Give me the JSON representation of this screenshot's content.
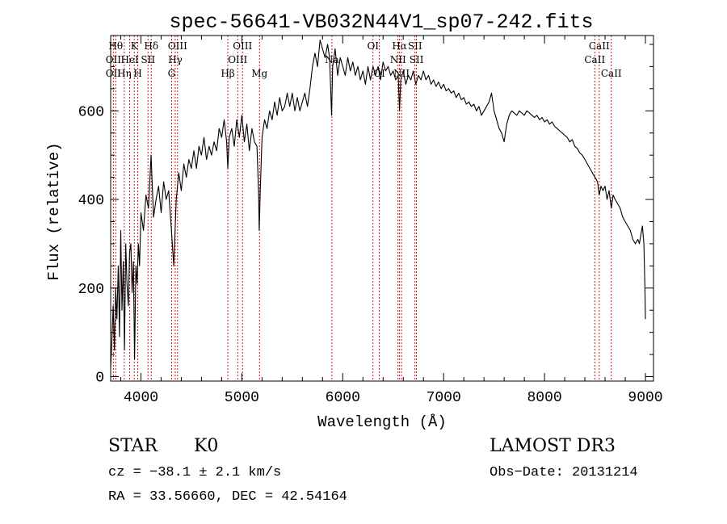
{
  "chart_data": {
    "type": "line",
    "title": "spec-56641-VB032N44V1_sp07-242.fits",
    "xlabel": "Wavelength (Å)",
    "ylabel": "Flux (relative)",
    "xlim": [
      3700,
      9080
    ],
    "ylim": [
      -10,
      770
    ],
    "x_ticks": [
      4000,
      5000,
      6000,
      7000,
      8000,
      9000
    ],
    "x_tick_labels": [
      "4000",
      "5000",
      "6000",
      "7000",
      "8000",
      "9000"
    ],
    "y_ticks": [
      0,
      200,
      400,
      600
    ],
    "y_tick_labels": [
      "0",
      "200",
      "400",
      "600"
    ],
    "grid": false,
    "series": [
      {
        "color": "#000000",
        "points": [
          [
            3700,
            20
          ],
          [
            3712,
            80
          ],
          [
            3725,
            160
          ],
          [
            3738,
            60
          ],
          [
            3750,
            200
          ],
          [
            3762,
            130
          ],
          [
            3775,
            250
          ],
          [
            3787,
            90
          ],
          [
            3800,
            330
          ],
          [
            3812,
            150
          ],
          [
            3825,
            260
          ],
          [
            3837,
            60
          ],
          [
            3850,
            300
          ],
          [
            3862,
            210
          ],
          [
            3875,
            160
          ],
          [
            3887,
            280
          ],
          [
            3900,
            300
          ],
          [
            3912,
            190
          ],
          [
            3925,
            260
          ],
          [
            3937,
            40
          ],
          [
            3950,
            250
          ],
          [
            3962,
            210
          ],
          [
            3975,
            300
          ],
          [
            3987,
            250
          ],
          [
            4000,
            370
          ],
          [
            4025,
            330
          ],
          [
            4050,
            410
          ],
          [
            4075,
            380
          ],
          [
            4100,
            500
          ],
          [
            4125,
            360
          ],
          [
            4150,
            400
          ],
          [
            4175,
            430
          ],
          [
            4200,
            370
          ],
          [
            4225,
            440
          ],
          [
            4250,
            400
          ],
          [
            4275,
            420
          ],
          [
            4300,
            340
          ],
          [
            4325,
            250
          ],
          [
            4350,
            400
          ],
          [
            4375,
            460
          ],
          [
            4400,
            420
          ],
          [
            4425,
            480
          ],
          [
            4450,
            450
          ],
          [
            4475,
            490
          ],
          [
            4500,
            470
          ],
          [
            4525,
            510
          ],
          [
            4550,
            470
          ],
          [
            4575,
            520
          ],
          [
            4600,
            500
          ],
          [
            4625,
            540
          ],
          [
            4650,
            490
          ],
          [
            4675,
            520
          ],
          [
            4700,
            500
          ],
          [
            4725,
            530
          ],
          [
            4750,
            510
          ],
          [
            4775,
            560
          ],
          [
            4800,
            540
          ],
          [
            4825,
            580
          ],
          [
            4850,
            530
          ],
          [
            4861,
            470
          ],
          [
            4875,
            540
          ],
          [
            4900,
            560
          ],
          [
            4925,
            520
          ],
          [
            4950,
            580
          ],
          [
            4975,
            540
          ],
          [
            5000,
            590
          ],
          [
            5025,
            530
          ],
          [
            5050,
            570
          ],
          [
            5075,
            510
          ],
          [
            5100,
            560
          ],
          [
            5125,
            530
          ],
          [
            5150,
            520
          ],
          [
            5167,
            410
          ],
          [
            5172,
            330
          ],
          [
            5183,
            420
          ],
          [
            5200,
            540
          ],
          [
            5225,
            580
          ],
          [
            5250,
            560
          ],
          [
            5275,
            600
          ],
          [
            5300,
            580
          ],
          [
            5325,
            620
          ],
          [
            5350,
            590
          ],
          [
            5375,
            630
          ],
          [
            5400,
            600
          ],
          [
            5425,
            610
          ],
          [
            5450,
            640
          ],
          [
            5475,
            610
          ],
          [
            5500,
            640
          ],
          [
            5525,
            600
          ],
          [
            5550,
            630
          ],
          [
            5575,
            600
          ],
          [
            5600,
            620
          ],
          [
            5625,
            640
          ],
          [
            5650,
            610
          ],
          [
            5675,
            650
          ],
          [
            5700,
            700
          ],
          [
            5725,
            730
          ],
          [
            5750,
            700
          ],
          [
            5775,
            760
          ],
          [
            5800,
            740
          ],
          [
            5825,
            720
          ],
          [
            5850,
            750
          ],
          [
            5870,
            720
          ],
          [
            5890,
            590
          ],
          [
            5900,
            700
          ],
          [
            5925,
            740
          ],
          [
            5950,
            680
          ],
          [
            5975,
            720
          ],
          [
            6000,
            700
          ],
          [
            6025,
            680
          ],
          [
            6050,
            720
          ],
          [
            6075,
            690
          ],
          [
            6100,
            710
          ],
          [
            6125,
            680
          ],
          [
            6150,
            700
          ],
          [
            6175,
            670
          ],
          [
            6200,
            690
          ],
          [
            6225,
            660
          ],
          [
            6250,
            700
          ],
          [
            6275,
            670
          ],
          [
            6300,
            700
          ],
          [
            6325,
            680
          ],
          [
            6350,
            700
          ],
          [
            6375,
            670
          ],
          [
            6400,
            710
          ],
          [
            6425,
            690
          ],
          [
            6450,
            700
          ],
          [
            6475,
            680
          ],
          [
            6500,
            690
          ],
          [
            6525,
            670
          ],
          [
            6550,
            680
          ],
          [
            6563,
            600
          ],
          [
            6575,
            670
          ],
          [
            6600,
            690
          ],
          [
            6625,
            660
          ],
          [
            6650,
            680
          ],
          [
            6675,
            670
          ],
          [
            6700,
            690
          ],
          [
            6725,
            660
          ],
          [
            6750,
            680
          ],
          [
            6775,
            670
          ],
          [
            6800,
            690
          ],
          [
            6825,
            670
          ],
          [
            6850,
            680
          ],
          [
            6875,
            660
          ],
          [
            6900,
            670
          ],
          [
            6925,
            655
          ],
          [
            6950,
            665
          ],
          [
            6975,
            650
          ],
          [
            7000,
            660
          ],
          [
            7025,
            645
          ],
          [
            7050,
            650
          ],
          [
            7075,
            640
          ],
          [
            7100,
            645
          ],
          [
            7125,
            630
          ],
          [
            7150,
            640
          ],
          [
            7175,
            625
          ],
          [
            7200,
            630
          ],
          [
            7225,
            615
          ],
          [
            7250,
            620
          ],
          [
            7275,
            610
          ],
          [
            7300,
            615
          ],
          [
            7325,
            600
          ],
          [
            7350,
            610
          ],
          [
            7375,
            590
          ],
          [
            7400,
            600
          ],
          [
            7425,
            610
          ],
          [
            7450,
            620
          ],
          [
            7475,
            640
          ],
          [
            7500,
            600
          ],
          [
            7525,
            580
          ],
          [
            7550,
            560
          ],
          [
            7575,
            550
          ],
          [
            7600,
            530
          ],
          [
            7625,
            570
          ],
          [
            7650,
            590
          ],
          [
            7675,
            600
          ],
          [
            7700,
            595
          ],
          [
            7725,
            590
          ],
          [
            7750,
            600
          ],
          [
            7775,
            595
          ],
          [
            7800,
            590
          ],
          [
            7825,
            600
          ],
          [
            7850,
            595
          ],
          [
            7875,
            590
          ],
          [
            7900,
            585
          ],
          [
            7925,
            590
          ],
          [
            7950,
            580
          ],
          [
            7975,
            585
          ],
          [
            8000,
            575
          ],
          [
            8025,
            580
          ],
          [
            8050,
            570
          ],
          [
            8075,
            575
          ],
          [
            8100,
            565
          ],
          [
            8125,
            560
          ],
          [
            8150,
            555
          ],
          [
            8175,
            550
          ],
          [
            8200,
            545
          ],
          [
            8225,
            540
          ],
          [
            8250,
            530
          ],
          [
            8275,
            535
          ],
          [
            8300,
            520
          ],
          [
            8325,
            515
          ],
          [
            8350,
            505
          ],
          [
            8375,
            500
          ],
          [
            8400,
            490
          ],
          [
            8425,
            480
          ],
          [
            8450,
            470
          ],
          [
            8475,
            460
          ],
          [
            8500,
            450
          ],
          [
            8525,
            440
          ],
          [
            8542,
            410
          ],
          [
            8560,
            430
          ],
          [
            8580,
            420
          ],
          [
            8600,
            430
          ],
          [
            8620,
            400
          ],
          [
            8640,
            420
          ],
          [
            8662,
            380
          ],
          [
            8680,
            410
          ],
          [
            8700,
            400
          ],
          [
            8725,
            390
          ],
          [
            8750,
            380
          ],
          [
            8775,
            360
          ],
          [
            8800,
            350
          ],
          [
            8825,
            340
          ],
          [
            8850,
            330
          ],
          [
            8875,
            310
          ],
          [
            8900,
            300
          ],
          [
            8925,
            310
          ],
          [
            8940,
            300
          ],
          [
            8955,
            320
          ],
          [
            8970,
            340
          ],
          [
            8985,
            300
          ],
          [
            8995,
            200
          ],
          [
            9000,
            130
          ]
        ]
      }
    ],
    "line_markers": [
      {
        "x": 3727,
        "labels": [
          "OII",
          "OII"
        ],
        "rows": [
          2,
          3
        ]
      },
      {
        "x": 3750,
        "labels": [
          "H&#952;"
        ],
        "rows": [
          1
        ]
      },
      {
        "x": 3835,
        "labels": [
          "H&#951;"
        ],
        "rows": [
          3
        ]
      },
      {
        "x": 3889,
        "labels": [
          "HeI"
        ],
        "rows": [
          2
        ]
      },
      {
        "x": 3934,
        "labels": [
          "K"
        ],
        "rows": [
          1
        ]
      },
      {
        "x": 3969,
        "labels": [
          "H"
        ],
        "rows": [
          3
        ]
      },
      {
        "x": 4070,
        "labels": [
          "SII"
        ],
        "rows": [
          2
        ]
      },
      {
        "x": 4102,
        "labels": [
          "Hδ"
        ],
        "rows": [
          1
        ]
      },
      {
        "x": 4304,
        "labels": [
          "G"
        ],
        "rows": [
          3
        ]
      },
      {
        "x": 4340,
        "labels": [
          "Hγ"
        ],
        "rows": [
          2
        ]
      },
      {
        "x": 4363,
        "labels": [
          "OIII"
        ],
        "rows": [
          1
        ]
      },
      {
        "x": 4861,
        "labels": [
          "Hβ"
        ],
        "rows": [
          3
        ]
      },
      {
        "x": 4959,
        "labels": [
          "OIII"
        ],
        "rows": [
          2
        ]
      },
      {
        "x": 5007,
        "labels": [
          "OIII"
        ],
        "rows": [
          1
        ]
      },
      {
        "x": 5175,
        "labels": [
          "Mg"
        ],
        "rows": [
          3
        ]
      },
      {
        "x": 5893,
        "labels": [
          "Na"
        ],
        "rows": [
          2
        ]
      },
      {
        "x": 6300,
        "labels": [
          "OI"
        ],
        "rows": [
          1
        ]
      },
      {
        "x": 6363,
        "labels": [
          "OI"
        ],
        "rows": [
          3
        ]
      },
      {
        "x": 6548,
        "labels": [
          "NII"
        ],
        "rows": [
          2
        ]
      },
      {
        "x": 6563,
        "labels": [
          "Hα"
        ],
        "rows": [
          1
        ]
      },
      {
        "x": 6583,
        "labels": [
          "NII"
        ],
        "rows": [
          3
        ]
      },
      {
        "x": 6716,
        "labels": [
          "SII"
        ],
        "rows": [
          1
        ]
      },
      {
        "x": 6731,
        "labels": [
          "SII"
        ],
        "rows": [
          2
        ]
      },
      {
        "x": 8498,
        "labels": [
          "CaII"
        ],
        "rows": [
          2
        ]
      },
      {
        "x": 8542,
        "labels": [
          "CaII"
        ],
        "rows": [
          1
        ]
      },
      {
        "x": 8662,
        "labels": [
          "CaII"
        ],
        "rows": [
          3
        ]
      }
    ],
    "marker_color": "#cc0000"
  },
  "info": {
    "class": "STAR",
    "subclass": "K0",
    "cz": "cz = −38.1 ± 2.1 km/s",
    "coords": "RA =  33.56660, DEC =  42.54164",
    "survey": "LAMOST DR3",
    "obs_date": "Obs−Date: 20131214"
  }
}
